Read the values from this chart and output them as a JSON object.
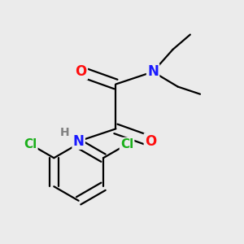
{
  "background_color": "#ebebeb",
  "atom_colors": {
    "C": "#000000",
    "N": "#1a1aff",
    "O": "#ff0d0d",
    "Cl": "#1aaf1a",
    "H": "#808080"
  },
  "bond_color": "#000000",
  "bond_width": 1.6,
  "figsize": [
    3.0,
    3.0
  ],
  "dpi": 100,
  "xlim": [
    -0.6,
    1.1
  ],
  "ylim": [
    -1.1,
    0.85
  ]
}
